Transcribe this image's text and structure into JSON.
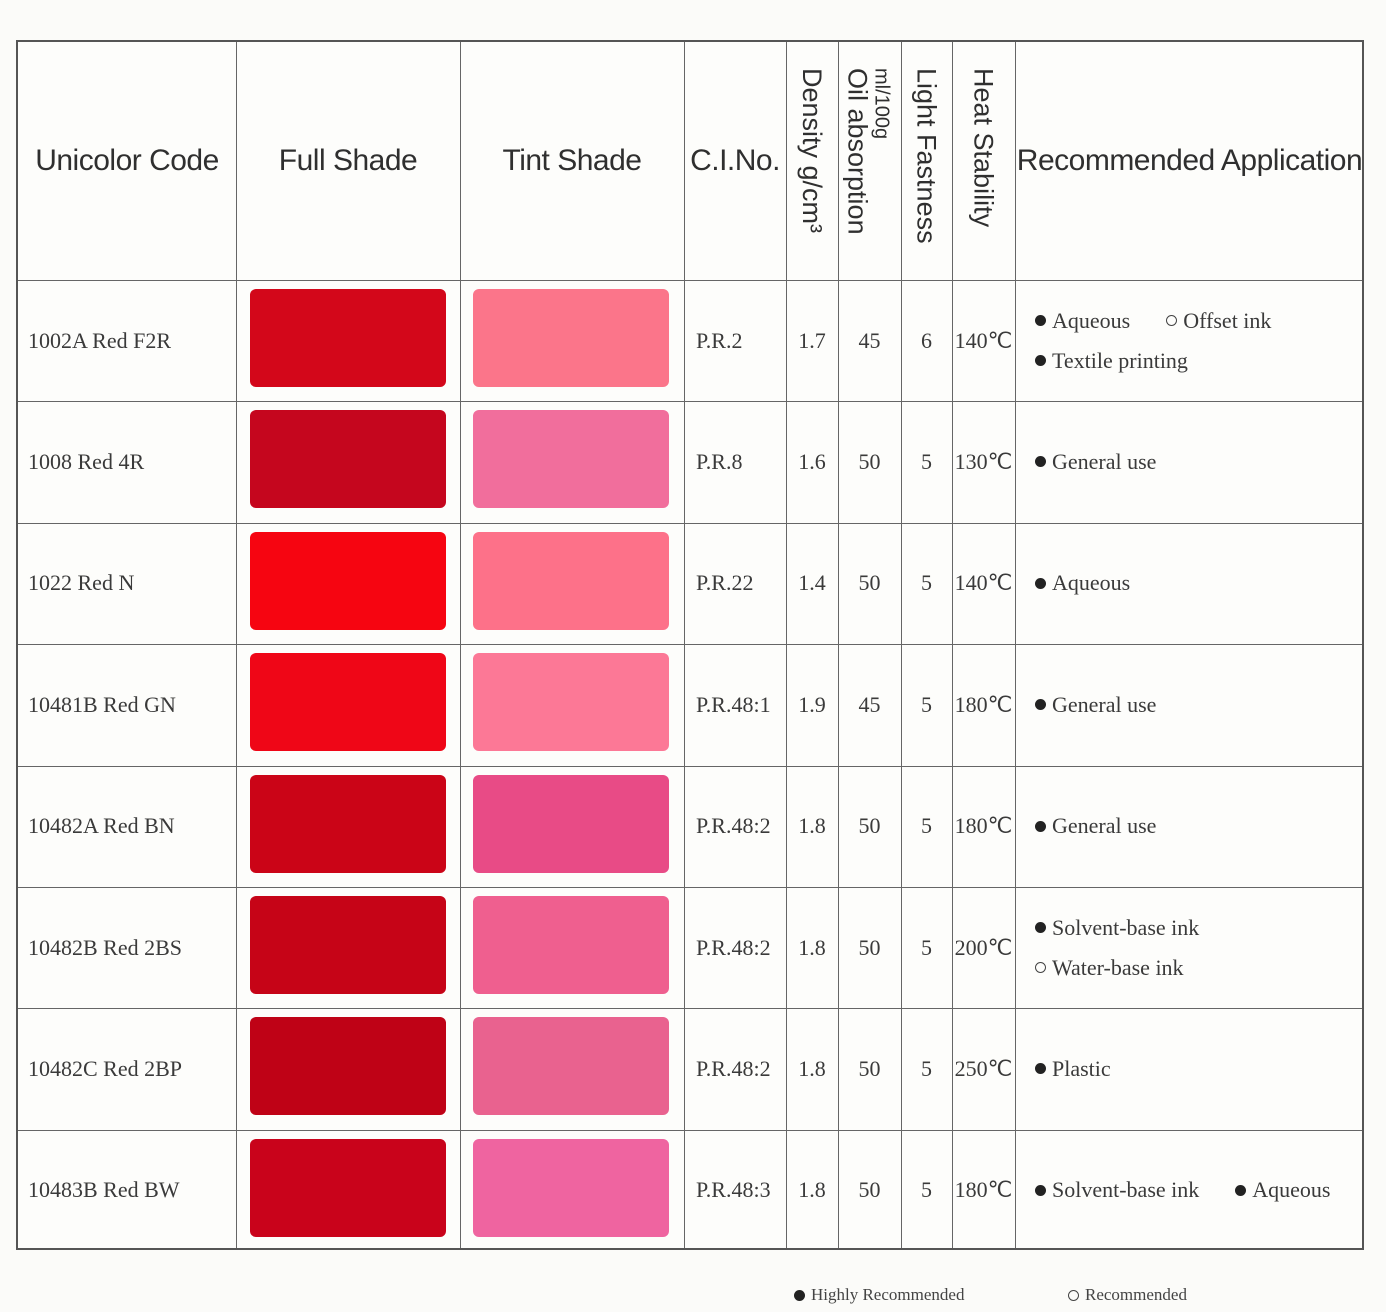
{
  "headers": {
    "code": "Unicolor Code",
    "full_shade": "Full Shade",
    "tint_shade": "Tint Shade",
    "ci_no": "C.I.No.",
    "density": "Density g/cm³",
    "oil_absorption": "Oil absorption",
    "oil_absorption_unit": "ml/100g",
    "light_fastness": "Light Fastness",
    "heat_stability": "Heat Stability",
    "application": "Recommended Application"
  },
  "rows": [
    {
      "code": "1002A  Red  F2R",
      "full": "#d3071a",
      "tint": "#fb758a",
      "ci": "P.R.2",
      "density": "1.7",
      "oil": "45",
      "light": "6",
      "heat": "140℃",
      "app": [
        [
          {
            "label": "Aqueous",
            "type": "highly"
          },
          {
            "label": "Offset ink",
            "type": "recommended"
          }
        ],
        [
          {
            "label": "Textile printing",
            "type": "highly"
          }
        ]
      ]
    },
    {
      "code": "1008 Red 4R",
      "full": "#c5061e",
      "tint": "#f16e9c",
      "ci": "P.R.8",
      "density": "1.6",
      "oil": "50",
      "light": "5",
      "heat": "130℃",
      "app": [
        [
          {
            "label": "General use",
            "type": "highly"
          }
        ]
      ]
    },
    {
      "code": "1022 Red N",
      "full": "#f60511",
      "tint": "#fd7189",
      "ci": "P.R.22",
      "density": "1.4",
      "oil": "50",
      "light": "5",
      "heat": "140℃",
      "app": [
        [
          {
            "label": "Aqueous",
            "type": "highly"
          }
        ]
      ]
    },
    {
      "code": "10481B Red GN",
      "full": "#ef0617",
      "tint": "#fc7896",
      "ci": "P.R.48:1",
      "density": "1.9",
      "oil": "45",
      "light": "5",
      "heat": "180℃",
      "app": [
        [
          {
            "label": "General use",
            "type": "highly"
          }
        ]
      ]
    },
    {
      "code": "10482A Red BN",
      "full": "#cb0417",
      "tint": "#e84b86",
      "ci": "P.R.48:2",
      "density": "1.8",
      "oil": "50",
      "light": "5",
      "heat": "180℃",
      "app": [
        [
          {
            "label": "General use",
            "type": "highly"
          }
        ]
      ]
    },
    {
      "code": "10482B Red 2BS",
      "full": "#c60417",
      "tint": "#ef5f8f",
      "ci": "P.R.48:2",
      "density": "1.8",
      "oil": "50",
      "light": "5",
      "heat": "200℃",
      "app": [
        [
          {
            "label": "Solvent-base ink",
            "type": "highly"
          }
        ],
        [
          {
            "label": "Water-base ink",
            "type": "recommended"
          }
        ]
      ]
    },
    {
      "code": "10482C Red 2BP",
      "full": "#bf0216",
      "tint": "#e9628f",
      "ci": "P.R.48:2",
      "density": "1.8",
      "oil": "50",
      "light": "5",
      "heat": "250℃",
      "app": [
        [
          {
            "label": "Plastic",
            "type": "highly"
          }
        ]
      ]
    },
    {
      "code": "10483B Red BW",
      "full": "#c9031b",
      "tint": "#ef64a0",
      "ci": "P.R.48:3",
      "density": "1.8",
      "oil": "50",
      "light": "5",
      "heat": "180℃",
      "app": [
        [
          {
            "label": "Solvent-base ink",
            "type": "highly"
          },
          {
            "label": "Aqueous",
            "type": "highly"
          }
        ]
      ]
    }
  ],
  "legend": {
    "highly": "Highly Recommended",
    "recommended": "Recommended"
  }
}
